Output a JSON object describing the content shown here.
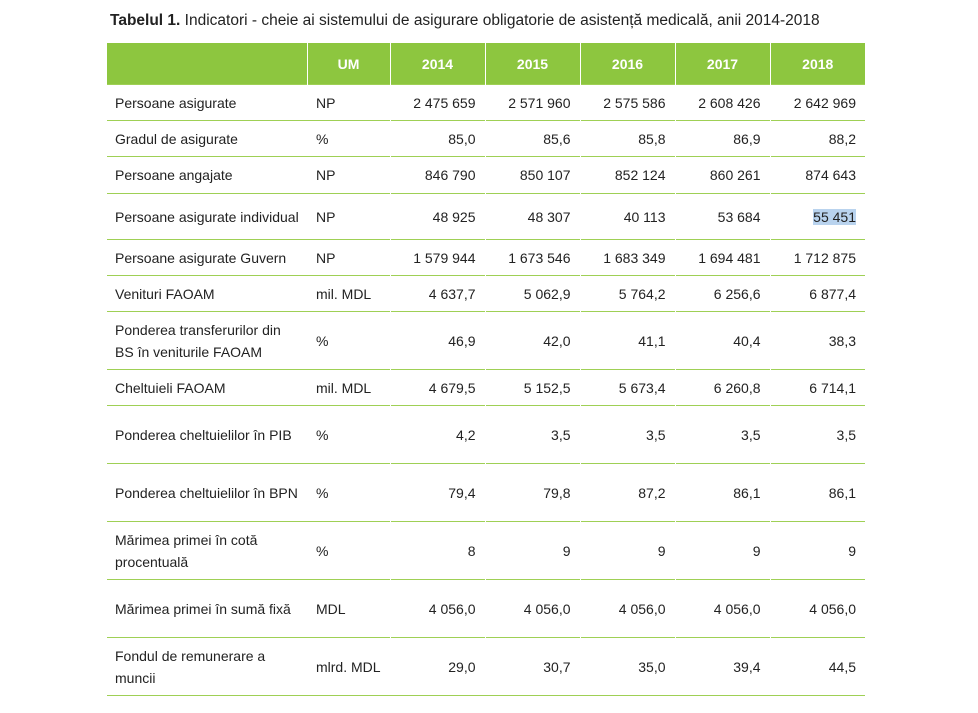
{
  "caption": {
    "label": "Tabelul 1.",
    "text": " Indicatori - cheie ai sistemului de asigurare obligatorie de asistență medicală, anii 2014-2018"
  },
  "header": [
    "",
    "UM",
    "2014",
    "2015",
    "2016",
    "2017",
    "2018"
  ],
  "rows": [
    {
      "label": "Persoane asigurate",
      "um": "NP",
      "values": [
        "2 475 659",
        "2 571 960",
        "2 575 586",
        "2 608 426",
        "2 642 969"
      ]
    },
    {
      "label": "Gradul de asigurate",
      "um": "%",
      "values": [
        "85,0",
        "85,6",
        "85,8",
        "86,9",
        "88,2"
      ]
    },
    {
      "label": "Persoane angajate",
      "um": "NP",
      "values": [
        "846 790",
        "850 107",
        "852 124",
        "860 261",
        "874 643"
      ]
    },
    {
      "label": "Persoane asigurate individual",
      "um": "NP",
      "values": [
        "48 925",
        "48 307",
        "40 113",
        "53 684",
        "55 451"
      ]
    },
    {
      "label": "Persoane asigurate Guvern",
      "um": "NP",
      "values": [
        "1 579 944",
        "1 673 546",
        "1 683 349",
        "1 694 481",
        "1 712 875"
      ]
    },
    {
      "label": "Venituri FAOAM",
      "um": "mil. MDL",
      "values": [
        "4 637,7",
        "5 062,9",
        "5 764,2",
        "6 256,6",
        "6 877,4"
      ]
    },
    {
      "label": "Ponderea transferurilor din BS în veniturile FAOAM",
      "um": "%",
      "values": [
        "46,9",
        "42,0",
        "41,1",
        "40,4",
        "38,3"
      ]
    },
    {
      "label": "Cheltuieli FAOAM",
      "um": "mil. MDL",
      "values": [
        "4 679,5",
        "5 152,5",
        "5 673,4",
        "6 260,8",
        "6 714,1"
      ]
    },
    {
      "label": "Ponderea cheltuielilor în PIB",
      "um": "%",
      "values": [
        "4,2",
        "3,5",
        "3,5",
        "3,5",
        "3,5"
      ]
    },
    {
      "label": "Ponderea cheltuielilor în BPN",
      "um": "%",
      "values": [
        "79,4",
        "79,8",
        "87,2",
        "86,1",
        "86,1"
      ]
    },
    {
      "label": "Mărimea primei în cotă procentuală",
      "um": "%",
      "values": [
        "8",
        "9",
        "9",
        "9",
        "9"
      ]
    },
    {
      "label": "Mărimea primei în sumă fixă",
      "um": "MDL",
      "values": [
        "4 056,0",
        "4 056,0",
        "4 056,0",
        "4 056,0",
        "4 056,0"
      ]
    },
    {
      "label": "Fondul de remunerare a muncii",
      "um": "mlrd. MDL",
      "values": [
        "29,0",
        "30,7",
        "35,0",
        "39,4",
        "44,5"
      ]
    }
  ],
  "highlight": {
    "row": 3,
    "col": 4,
    "color": "#b9d3ee"
  }
}
